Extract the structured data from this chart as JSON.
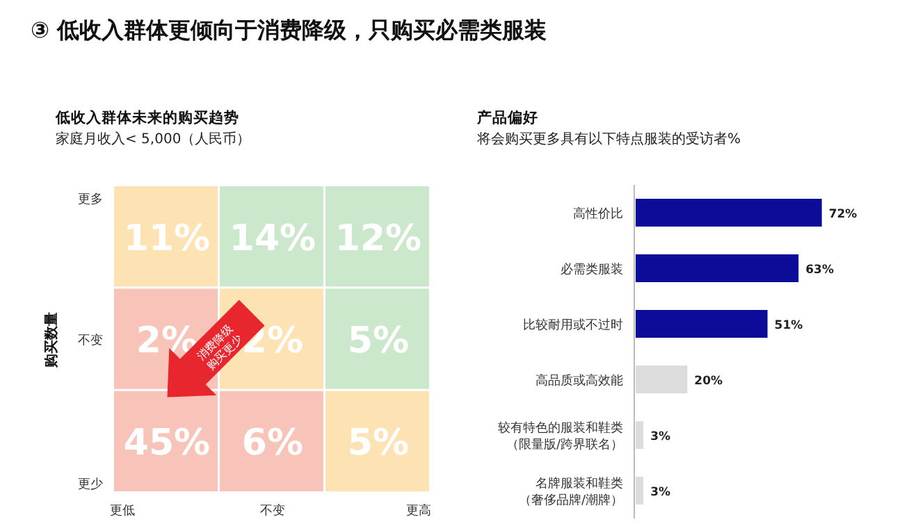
{
  "chart_data": [
    {
      "type": "heatmap",
      "title": "低收入群体未来的购买趋势",
      "subtitle": "家庭月收入< 5,000（人民币）",
      "ylabel": "购买数量",
      "annotations": [
        "③ 低收入群体更倾向于消费降级，只购买必需类服装",
        "消费降级\n购买更少"
      ],
      "categories": [
        "更低",
        "不变",
        "更高"
      ],
      "y_categories": [
        "更多",
        "不变",
        "更少"
      ],
      "cells": [
        [
          11,
          14,
          12
        ],
        [
          2,
          2,
          5
        ],
        [
          45,
          6,
          5
        ]
      ],
      "cell_labels": [
        [
          "11%",
          "14%",
          "12%"
        ],
        [
          "2%",
          "2%",
          "5%"
        ],
        [
          "45%",
          "6%",
          "5%"
        ]
      ],
      "colors": [
        "#fde2b3",
        "#cbe8cc",
        "#cbe8cc",
        "#f8c4ba",
        "#fde2b3",
        "#cbe8cc",
        "#f8c4ba",
        "#f8c4ba",
        "#fde2b3"
      ]
    },
    {
      "type": "bar",
      "orientation": "horizontal",
      "title": "产品偏好",
      "subtitle": "将会购买更多具有以下特点服装的受访者%",
      "categories": [
        "高性价比",
        "必需类服装",
        "比较耐用或不过时",
        "高品质或高效能",
        "较有特色的服装和鞋类（限量版/跨界联名）",
        "名牌服装和鞋类（奢侈品牌/潮牌）"
      ],
      "values": [
        72,
        63,
        51,
        20,
        3,
        3
      ],
      "colors": [
        "#0c0c99",
        "#0c0c99",
        "#0c0c99",
        "#dcdcdc",
        "#dcdcdc",
        "#dcdcdc"
      ],
      "value_labels": [
        "72%",
        "63%",
        "51%",
        "20%",
        "3%",
        "3%"
      ]
    }
  ]
}
